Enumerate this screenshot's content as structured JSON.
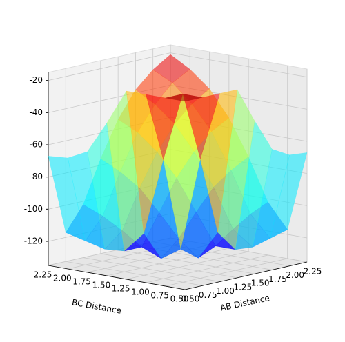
{
  "chart_data": {
    "type": "surface",
    "xlabel": "AB Distance",
    "ylabel": "BC Distance",
    "x": [
      0.5,
      0.75,
      1.0,
      1.25,
      1.5,
      1.75,
      2.0,
      2.25
    ],
    "y": [
      0.5,
      0.75,
      1.0,
      1.25,
      1.5,
      1.75,
      2.0,
      2.25
    ],
    "z": [
      [
        -18,
        -18,
        -18,
        -18,
        -40,
        -60,
        -66,
        -67
      ],
      [
        -18,
        -18,
        -61,
        -109,
        -122,
        -123,
        -120,
        -117
      ],
      [
        -18,
        -61,
        -119,
        -127,
        -122,
        -114,
        -107,
        -102
      ],
      [
        -18,
        -109,
        -127,
        -117,
        -103,
        -90,
        -82,
        -76
      ],
      [
        -40,
        -122,
        -122,
        -103,
        -84,
        -70,
        -60,
        -54
      ],
      [
        -60,
        -123,
        -114,
        -90,
        -70,
        -55,
        -45,
        -38
      ],
      [
        -66,
        -120,
        -107,
        -82,
        -60,
        -45,
        -34,
        -28
      ],
      [
        -67,
        -117,
        -102,
        -76,
        -54,
        -38,
        -28,
        -21
      ]
    ],
    "colormap": "jet",
    "xlim": [
      0.5,
      2.25
    ],
    "ylim": [
      0.5,
      2.25
    ],
    "zlim": [
      -135,
      -15
    ],
    "xticks": [
      {
        "value": 0.5,
        "label": "0.50"
      },
      {
        "value": 0.75,
        "label": "0.75"
      },
      {
        "value": 1.0,
        "label": "1.00"
      },
      {
        "value": 1.25,
        "label": "1.25"
      },
      {
        "value": 1.5,
        "label": "1.50"
      },
      {
        "value": 1.75,
        "label": "1.75"
      },
      {
        "value": 2.0,
        "label": "2.00"
      },
      {
        "value": 2.25,
        "label": "2.25"
      }
    ],
    "yticks": [
      {
        "value": 0.5,
        "label": "0.50"
      },
      {
        "value": 0.75,
        "label": "0.75"
      },
      {
        "value": 1.0,
        "label": "1.00"
      },
      {
        "value": 1.25,
        "label": "1.25"
      },
      {
        "value": 1.5,
        "label": "1.50"
      },
      {
        "value": 1.75,
        "label": "1.75"
      },
      {
        "value": 2.0,
        "label": "2.00"
      },
      {
        "value": 2.25,
        "label": "2.25"
      }
    ],
    "zticks": [
      -20,
      -40,
      -60,
      -80,
      -100,
      -120
    ],
    "grid": true
  }
}
